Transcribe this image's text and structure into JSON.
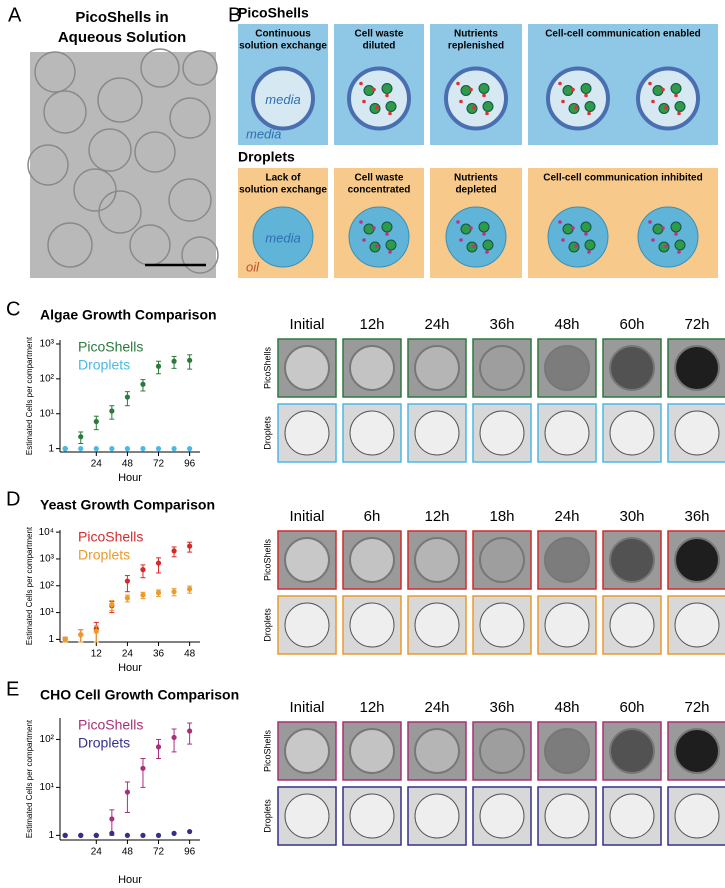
{
  "panel_labels": [
    "A",
    "B",
    "C",
    "D",
    "E"
  ],
  "panel_a": {
    "title": [
      "PicoShells in",
      "Aqueous Solution"
    ]
  },
  "panel_b": {
    "picoshells": {
      "title": "PicoShells",
      "boxes": [
        [
          "Continuous",
          "solution exchange"
        ],
        [
          "Cell waste",
          "diluted"
        ],
        [
          "Nutrients",
          "replenished"
        ],
        [
          "Cell-cell communication enabled"
        ]
      ],
      "inner_label": "media",
      "outer_label": "media"
    },
    "droplets": {
      "title": "Droplets",
      "boxes": [
        [
          "Lack of",
          "solution exchange"
        ],
        [
          "Cell waste",
          "concentrated"
        ],
        [
          "Nutrients",
          "depleted"
        ],
        [
          "Cell-cell communication inhibited"
        ]
      ],
      "inner_label": "media",
      "outer_label": "oil"
    }
  },
  "chart_data": [
    {
      "type": "scatter",
      "title": "Algae Growth Comparison",
      "x_label": "Hour",
      "y_label": "Estimated Cells per compartment",
      "log_y": true,
      "legend": "upper left",
      "xlim": [
        -4,
        104
      ],
      "xticks": [
        24,
        48,
        72,
        96
      ],
      "ylim": [
        0.8,
        1300
      ],
      "yticks": [
        1,
        {
          "value": 10,
          "label": "10¹"
        },
        {
          "value": 100,
          "label": "10²"
        },
        {
          "value": 1000,
          "label": "10³"
        }
      ],
      "series": [
        {
          "name": "PicoShells",
          "color": "#2a7a3e",
          "x": [
            0,
            12,
            24,
            36,
            48,
            60,
            72,
            84,
            96
          ],
          "values": [
            1,
            2.2,
            6,
            12,
            30,
            70,
            230,
            320,
            340
          ],
          "errors": [
            0,
            0.8,
            2.5,
            5,
            13,
            25,
            90,
            120,
            150
          ]
        },
        {
          "name": "Droplets",
          "color": "#4ab8e8",
          "x": [
            0,
            12,
            24,
            36,
            48,
            60,
            72,
            84,
            96
          ],
          "values": [
            1,
            1,
            1,
            1,
            1,
            1,
            1,
            1,
            1
          ]
        }
      ],
      "image_strip": {
        "times": [
          "Initial",
          "12h",
          "24h",
          "36h",
          "48h",
          "60h",
          "72h"
        ],
        "rows": [
          "PicoShells",
          "Droplets"
        ]
      }
    },
    {
      "type": "scatter",
      "title": "Yeast Growth Comparison",
      "x_label": "Hour",
      "y_label": "Estimated Cells per compartment",
      "log_y": true,
      "legend": "upper left",
      "xlim": [
        -2,
        52
      ],
      "xticks": [
        12,
        24,
        36,
        48
      ],
      "ylim": [
        0.8,
        12000
      ],
      "yticks": [
        1,
        {
          "value": 10,
          "label": "10¹"
        },
        {
          "value": 100,
          "label": "10²"
        },
        {
          "value": 1000,
          "label": "10³"
        },
        {
          "value": 10000,
          "label": "10⁴"
        }
      ],
      "series": [
        {
          "name": "PicoShells",
          "color": "#d42a2a",
          "x": [
            0,
            6,
            12,
            18,
            24,
            30,
            36,
            42,
            48
          ],
          "values": [
            1,
            1.5,
            2.5,
            18,
            150,
            400,
            700,
            2000,
            3000
          ],
          "errors": [
            0.2,
            0.8,
            1.8,
            8,
            90,
            200,
            400,
            800,
            1200
          ]
        },
        {
          "name": "Droplets",
          "color": "#eb9a2c",
          "x": [
            0,
            6,
            12,
            18,
            24,
            30,
            36,
            42,
            48
          ],
          "values": [
            1,
            1.5,
            2,
            20,
            35,
            45,
            55,
            60,
            75
          ],
          "errors": [
            0.2,
            0.8,
            1.2,
            8,
            10,
            12,
            15,
            18,
            22
          ]
        }
      ],
      "image_strip": {
        "times": [
          "Initial",
          "6h",
          "12h",
          "18h",
          "24h",
          "30h",
          "36h"
        ],
        "rows": [
          "PicoShells",
          "Droplets"
        ]
      }
    },
    {
      "type": "scatter",
      "title": "CHO Cell Growth Comparison",
      "x_label": "Hour",
      "y_label": "Estimated Cells per compartment",
      "log_y": true,
      "legend": "upper left",
      "xlim": [
        -4,
        104
      ],
      "xticks": [
        24,
        48,
        72,
        96
      ],
      "ylim": [
        0.8,
        280
      ],
      "yticks": [
        1,
        {
          "value": 10,
          "label": "10¹"
        },
        {
          "value": 100,
          "label": "10²"
        }
      ],
      "series": [
        {
          "name": "PicoShells",
          "color": "#a8307a",
          "x": [
            0,
            12,
            24,
            36,
            48,
            60,
            72,
            84,
            96
          ],
          "values": [
            1,
            1,
            1,
            2.2,
            8,
            25,
            70,
            110,
            150
          ],
          "errors": [
            0,
            0,
            0,
            1.2,
            5,
            15,
            30,
            55,
            70
          ]
        },
        {
          "name": "Droplets",
          "color": "#34308a",
          "x": [
            0,
            12,
            24,
            36,
            48,
            60,
            72,
            84,
            96
          ],
          "values": [
            1,
            1,
            1,
            1.1,
            1,
            1,
            1,
            1.1,
            1.2
          ]
        }
      ],
      "image_strip": {
        "times": [
          "Initial",
          "12h",
          "24h",
          "36h",
          "48h",
          "60h",
          "72h"
        ],
        "rows": [
          "PicoShells",
          "Droplets"
        ]
      }
    }
  ]
}
